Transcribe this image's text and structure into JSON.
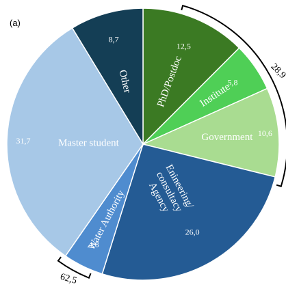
{
  "panel_label": "(a)",
  "chart_data": {
    "type": "pie",
    "slices": [
      {
        "label": "PhD/Postdoc",
        "value": 12.5,
        "value_label": "12,5",
        "color": "#3b7a23"
      },
      {
        "label": "Institute",
        "value": 5.8,
        "value_label": "5,8",
        "color": "#4fcf56"
      },
      {
        "label": "Government",
        "value": 10.6,
        "value_label": "10,6",
        "color": "#a9dc91"
      },
      {
        "label": "Enineering/ consultacy Agency",
        "label_lines": [
          "Enineering/",
          "consultacy",
          "Agency"
        ],
        "value": 26.0,
        "value_label": "26,0",
        "color": "#245b94"
      },
      {
        "label": "Water Authority",
        "value": 4.8,
        "value_label": "4,8",
        "color": "#4f8ccf"
      },
      {
        "label": "Master student",
        "value": 31.7,
        "value_label": "31,7",
        "color": "#a7c8e7"
      },
      {
        "label": "Other",
        "value": 8.7,
        "value_label": "8,7",
        "color": "#143e55"
      }
    ],
    "group_annotations": [
      {
        "text": "28,9",
        "slices": [
          "PhD/Postdoc",
          "Institute",
          "Government"
        ]
      },
      {
        "text": "62,5",
        "slices": [
          "Enineering/ consultacy Agency",
          "Water Authority",
          "Master student"
        ]
      }
    ]
  }
}
